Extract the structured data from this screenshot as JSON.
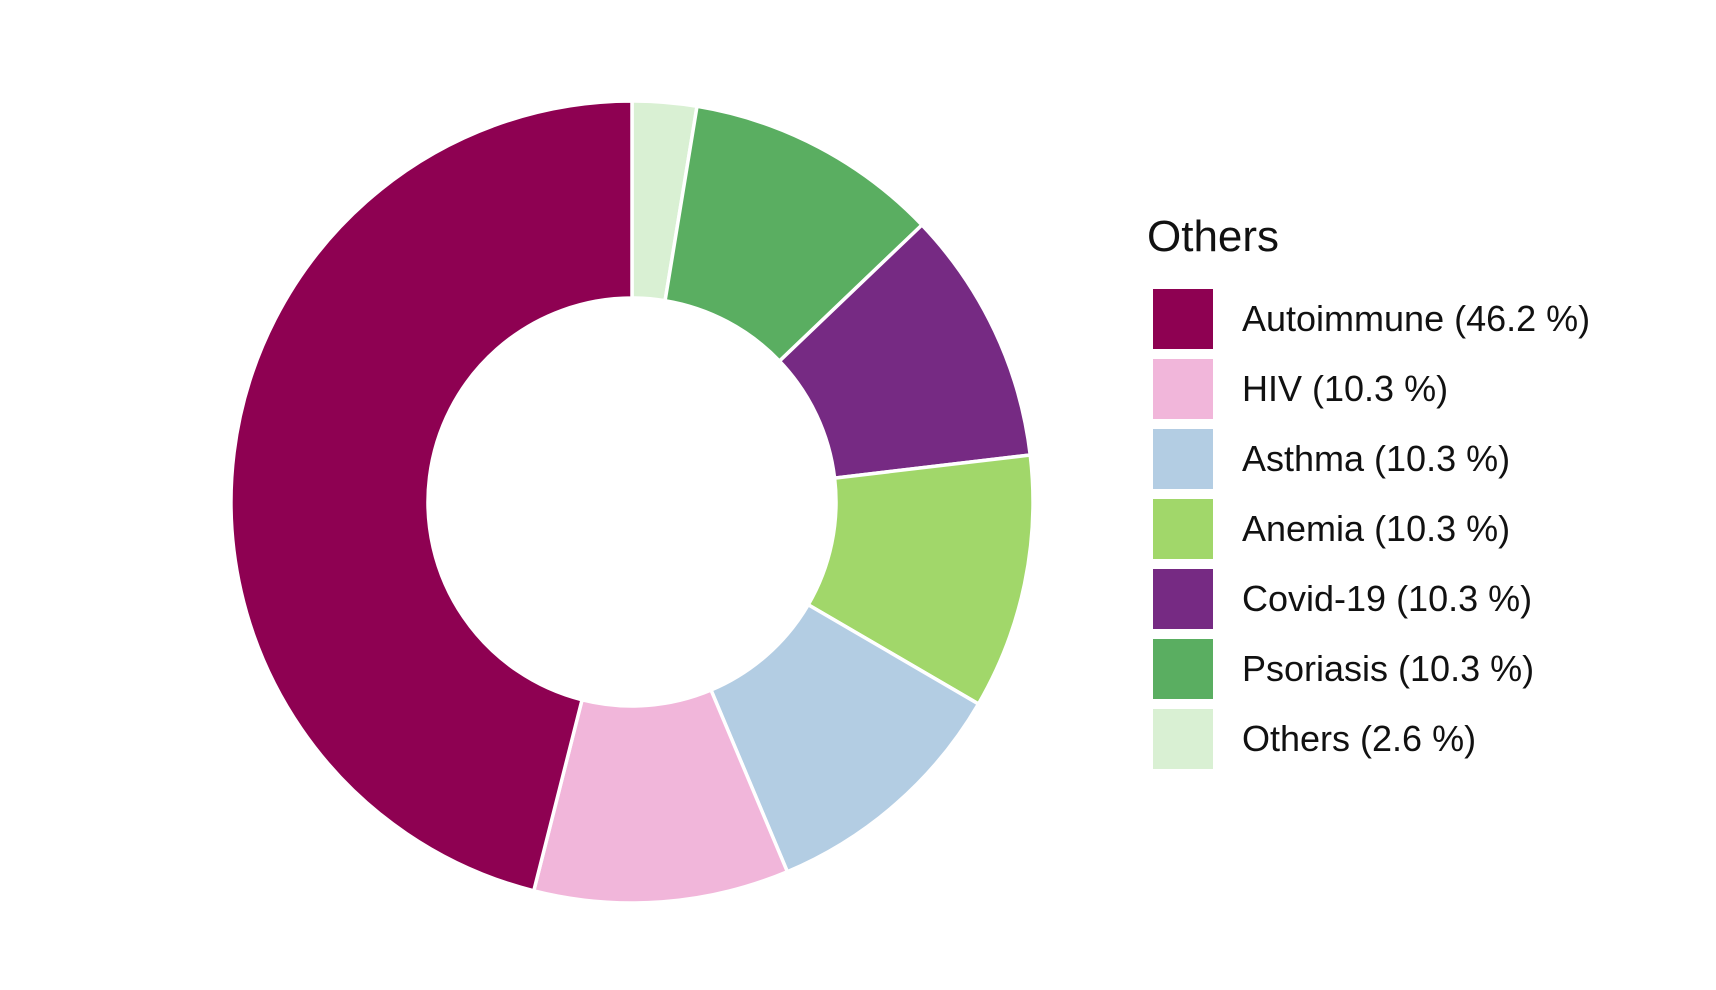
{
  "chart_data": {
    "type": "pie",
    "variant": "donut",
    "title": "",
    "legend_title": "Others",
    "legend_position": "right",
    "start_angle": "12 o'clock",
    "direction": "clockwise",
    "slice_order": [
      "Others",
      "Psoriasis",
      "Covid-19",
      "Anemia",
      "Asthma",
      "HIV",
      "Autoimmune"
    ],
    "slices": [
      {
        "name": "Autoimmune",
        "value": 46.2,
        "label": "Autoimmune (46.2 %)",
        "color": "#8E0152"
      },
      {
        "name": "HIV",
        "value": 10.3,
        "label": "HIV (10.3 %)",
        "color": "#F1B6DA"
      },
      {
        "name": "Asthma",
        "value": 10.3,
        "label": "Asthma (10.3 %)",
        "color": "#B3CDE3"
      },
      {
        "name": "Anemia",
        "value": 10.3,
        "label": "Anemia (10.3 %)",
        "color": "#A1D76A"
      },
      {
        "name": "Covid-19",
        "value": 10.3,
        "label": "Covid-19 (10.3 %)",
        "color": "#762A83"
      },
      {
        "name": "Psoriasis",
        "value": 10.3,
        "label": "Psoriasis (10.3 %)",
        "color": "#5AAE61"
      },
      {
        "name": "Others",
        "value": 2.6,
        "label": "Others (2.6 %)",
        "color": "#D9F0D3"
      }
    ]
  }
}
